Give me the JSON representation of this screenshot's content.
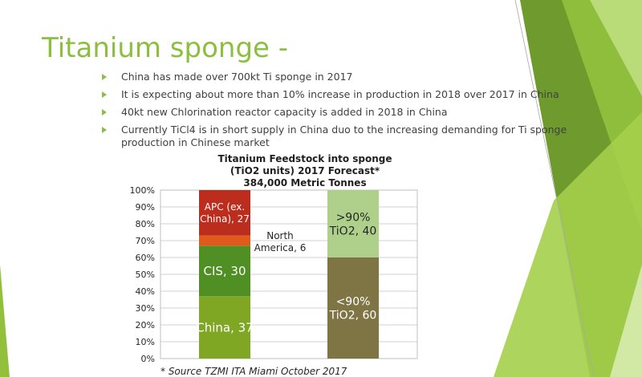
{
  "slide": {
    "title": "Titanium sponge -",
    "bullets": [
      "China has made over 700kt Ti sponge in 2017",
      "It is expecting about more than 10% increase in production in 2018 over 2017 in China",
      "40kt new Chlorination reactor capacity is added in 2018 in China",
      "Currently TiCl4 is in short supply in China duo to the increasing demanding for Ti sponge production in Chinese market"
    ],
    "source": "* Source TZMI ITA Miami October 2017"
  },
  "colors": {
    "title": "#8cbf3f",
    "bullet_marker": "#8cbf3f",
    "body_text": "#404040"
  },
  "chart_data": {
    "type": "bar",
    "stacked": true,
    "title": "Titanium Feedstock into sponge (TiO2 units) 2017 Forecast* 384,000 Metric Tonnes",
    "title_lines": [
      "Titanium Feedstock into sponge",
      "(TiO2 units) 2017 Forecast*",
      "384,000 Metric Tonnes"
    ],
    "ylim": [
      0,
      100
    ],
    "y_ticks": [
      "0%",
      "10%",
      "20%",
      "30%",
      "40%",
      "50%",
      "60%",
      "70%",
      "80%",
      "90%",
      "100%"
    ],
    "grid": true,
    "legend": "none",
    "bars": [
      {
        "segments": [
          {
            "label": "China, 37",
            "value": 37,
            "color": "#7fa724",
            "text_color": "#ffffff"
          },
          {
            "label": "CIS, 30",
            "value": 30,
            "color": "#4f8f23",
            "text_color": "#ffffff"
          },
          {
            "label": "North America, 6",
            "value": 6,
            "color": "#e05a1c",
            "text_color": "#262626",
            "label_outside": true
          },
          {
            "label": "APC (ex. China), 27",
            "value": 27,
            "color": "#bd2d1e",
            "text_color": "#ffffff"
          }
        ]
      },
      {
        "segments": [
          {
            "label": "<90% TiO2, 60",
            "value": 60,
            "color": "#7f7544",
            "text_color": "#ffffff"
          },
          {
            "label": ">90% TiO2, 40",
            "value": 40,
            "color": "#afd08a",
            "text_color": "#262626"
          }
        ]
      }
    ]
  }
}
